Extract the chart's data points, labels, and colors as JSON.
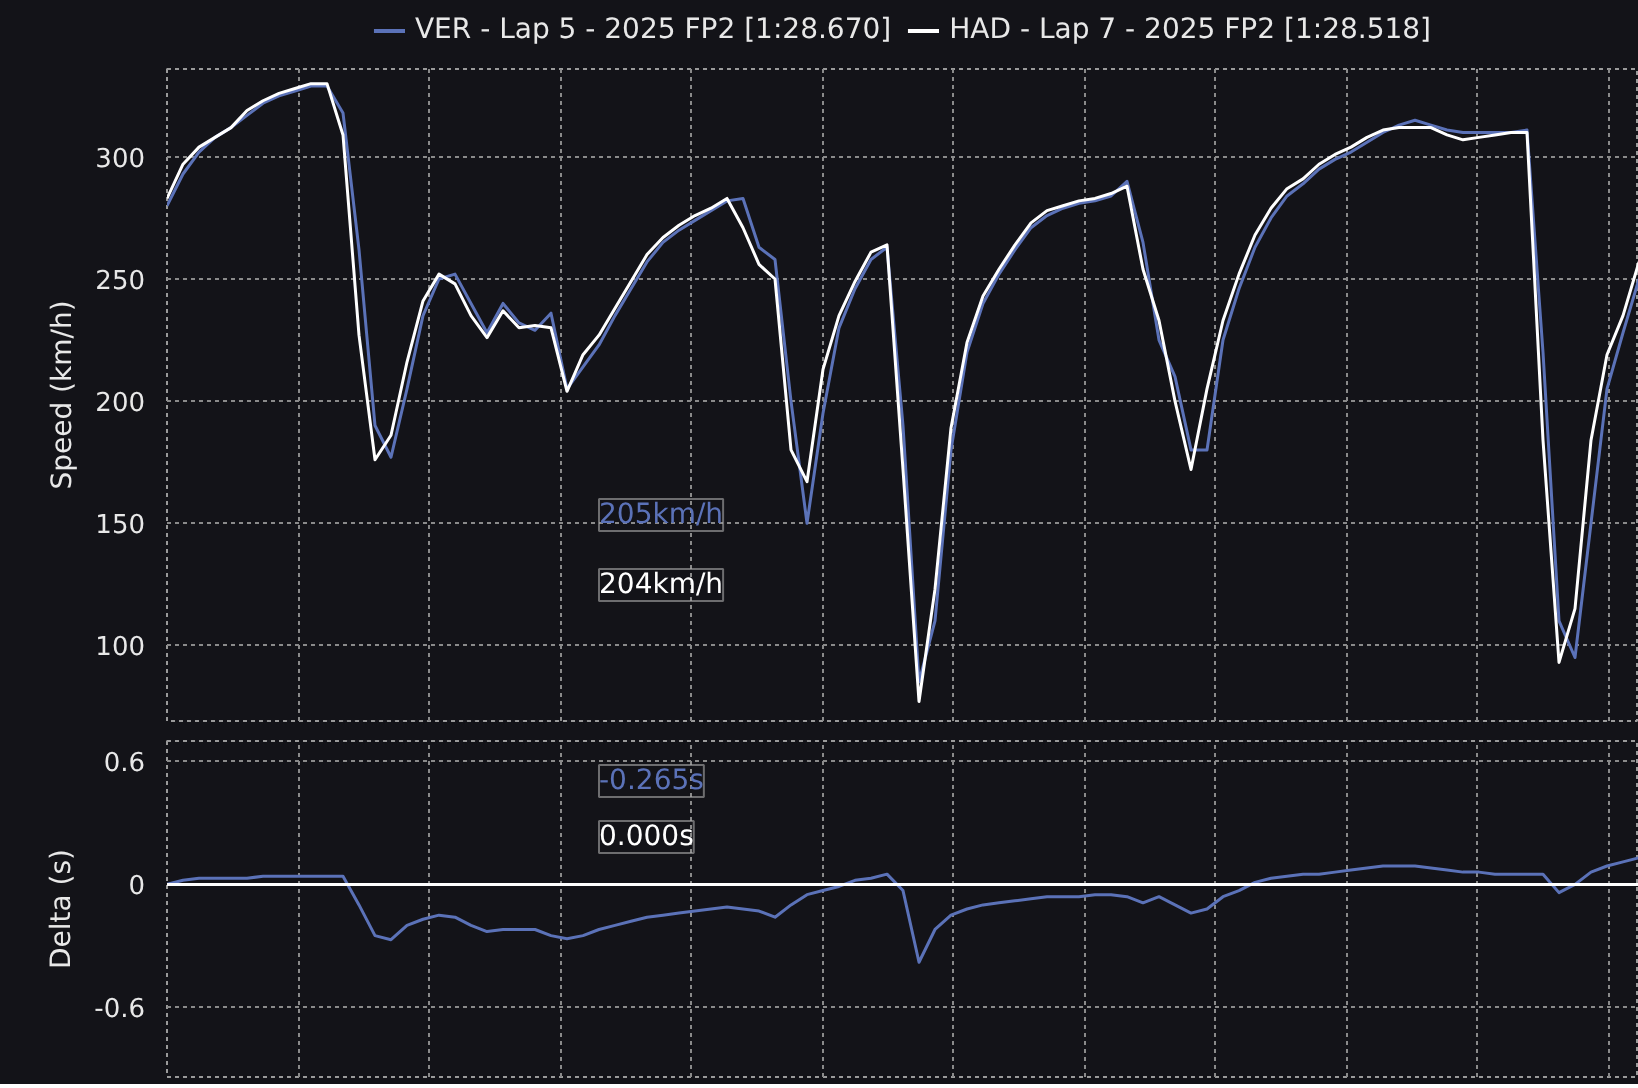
{
  "chart_data": [
    {
      "type": "line",
      "ylabel": "Speed (km/h)",
      "categories": [
        null,
        null,
        null,
        null,
        null,
        null,
        null,
        null,
        null,
        null,
        null,
        null,
        null,
        null,
        null,
        null,
        null,
        null,
        null,
        null,
        null,
        null,
        null,
        null,
        null,
        null,
        null,
        null,
        null,
        null,
        null,
        null,
        null,
        null,
        null,
        null,
        null,
        null,
        null,
        null,
        null,
        null,
        null,
        null,
        null,
        null,
        null,
        null,
        null,
        null,
        null,
        null,
        null,
        null,
        null,
        null,
        null,
        null,
        null,
        null,
        null,
        null,
        null,
        null,
        null,
        null,
        null,
        null,
        null,
        null,
        null,
        null,
        null,
        null,
        null,
        null,
        null,
        null,
        null,
        null,
        null,
        null,
        null,
        null,
        null,
        null,
        null,
        null,
        null,
        null,
        null,
        null,
        null
      ],
      "series": [
        {
          "name": "VER - Lap 5 - 2025 FP2 [1:28.670]",
          "color": "#5b72b8",
          "values": [
            280,
            293,
            302,
            308,
            312,
            317,
            322,
            325,
            327,
            329,
            329,
            318,
            262,
            190,
            177,
            205,
            235,
            250,
            252,
            240,
            228,
            240,
            232,
            229,
            236,
            205,
            214,
            223,
            235,
            246,
            257,
            265,
            270,
            274,
            278,
            282,
            283,
            263,
            258,
            200,
            150,
            195,
            230,
            246,
            258,
            263,
            190,
            85,
            110,
            180,
            220,
            240,
            252,
            262,
            271,
            276,
            279,
            281,
            282,
            284,
            290,
            265,
            225,
            210,
            180,
            180,
            225,
            246,
            263,
            275,
            284,
            289,
            295,
            299,
            302,
            306,
            310,
            313,
            315,
            313,
            311,
            310,
            310,
            310,
            310,
            311,
            220,
            110,
            95,
            150,
            205,
            228,
            250
          ]
        },
        {
          "name": "HAD - Lap 7 - 2025 FP2 [1:28.518]",
          "color": "#ffffff",
          "values": [
            283,
            297,
            304,
            308,
            312,
            319,
            323,
            326,
            328,
            330,
            330,
            309,
            227,
            176,
            186,
            216,
            241,
            252,
            248,
            235,
            226,
            237,
            230,
            231,
            230,
            204,
            219,
            227,
            238,
            249,
            260,
            267,
            272,
            276,
            279,
            283,
            271,
            256,
            250,
            180,
            167,
            213,
            235,
            249,
            261,
            264,
            172,
            77,
            123,
            189,
            224,
            243,
            254,
            264,
            273,
            278,
            280,
            282,
            283,
            285,
            288,
            254,
            233,
            200,
            172,
            205,
            233,
            252,
            268,
            279,
            287,
            291,
            297,
            301,
            304,
            308,
            311,
            312,
            312,
            312,
            309,
            307,
            308,
            309,
            310,
            310,
            184,
            93,
            115,
            184,
            219,
            235,
            257
          ]
        }
      ],
      "ylim": [
        69,
        336
      ],
      "yticks": [
        100,
        150,
        200,
        250,
        300
      ],
      "grid": true,
      "legend": "top",
      "marker": "none",
      "line_style": "solid",
      "annotations": [
        "205km/h",
        "204km/h"
      ]
    },
    {
      "type": "line",
      "ylabel": "Delta (s)",
      "categories": [
        null,
        null,
        null,
        null,
        null,
        null,
        null,
        null,
        null,
        null,
        null,
        null,
        null,
        null,
        null,
        null,
        null,
        null,
        null,
        null,
        null,
        null,
        null,
        null,
        null,
        null,
        null,
        null,
        null,
        null,
        null,
        null,
        null,
        null,
        null,
        null,
        null,
        null,
        null,
        null,
        null,
        null,
        null,
        null,
        null,
        null,
        null,
        null,
        null,
        null,
        null,
        null,
        null,
        null,
        null,
        null,
        null,
        null,
        null,
        null,
        null,
        null,
        null,
        null,
        null,
        null,
        null,
        null,
        null,
        null,
        null,
        null,
        null,
        null,
        null,
        null,
        null,
        null,
        null,
        null,
        null,
        null,
        null,
        null,
        null,
        null,
        null,
        null,
        null,
        null,
        null,
        null,
        null
      ],
      "series": [
        {
          "color": "#5b72b8",
          "values": [
            0,
            0.02,
            0.03,
            0.03,
            0.03,
            0.03,
            0.04,
            0.04,
            0.04,
            0.04,
            0.04,
            0.04,
            -0.1,
            -0.25,
            -0.27,
            -0.2,
            -0.17,
            -0.15,
            -0.16,
            -0.2,
            -0.23,
            -0.22,
            -0.22,
            -0.22,
            -0.25,
            -0.265,
            -0.25,
            -0.22,
            -0.2,
            -0.18,
            -0.16,
            -0.15,
            -0.14,
            -0.13,
            -0.12,
            -0.11,
            -0.12,
            -0.13,
            -0.16,
            -0.1,
            -0.05,
            -0.03,
            -0.01,
            0.02,
            0.03,
            0.05,
            -0.03,
            -0.38,
            -0.22,
            -0.15,
            -0.12,
            -0.1,
            -0.09,
            -0.08,
            -0.07,
            -0.06,
            -0.06,
            -0.06,
            -0.05,
            -0.05,
            -0.06,
            -0.09,
            -0.06,
            -0.1,
            -0.14,
            -0.12,
            -0.06,
            -0.03,
            0.01,
            0.03,
            0.04,
            0.05,
            0.05,
            0.06,
            0.07,
            0.08,
            0.09,
            0.09,
            0.09,
            0.08,
            0.07,
            0.06,
            0.06,
            0.05,
            0.05,
            0.05,
            0.05,
            -0.04,
            0,
            0.06,
            0.09,
            0.11,
            0.13
          ]
        },
        {
          "color": "#ffffff",
          "values": [
            0,
            0,
            0,
            0,
            0,
            0,
            0,
            0,
            0,
            0,
            0,
            0,
            0,
            0,
            0,
            0,
            0,
            0,
            0,
            0,
            0,
            0,
            0,
            0,
            0,
            0,
            0,
            0,
            0,
            0,
            0,
            0,
            0,
            0,
            0,
            0,
            0,
            0,
            0,
            0,
            0,
            0,
            0,
            0,
            0,
            0,
            0,
            0,
            0,
            0,
            0,
            0,
            0,
            0,
            0,
            0,
            0,
            0,
            0,
            0,
            0,
            0,
            0,
            0,
            0,
            0,
            0,
            0,
            0,
            0,
            0,
            0,
            0,
            0,
            0,
            0,
            0,
            0,
            0,
            0,
            0,
            0,
            0,
            0,
            0,
            0,
            0,
            0,
            0,
            0,
            0,
            0,
            0
          ]
        }
      ],
      "ylim": [
        -0.94,
        0.7
      ],
      "yticks": [
        -0.6,
        0,
        0.6
      ],
      "grid": true,
      "marker": "none",
      "line_style": "solid",
      "annotations": [
        "-0.265s",
        "0.000s"
      ]
    }
  ]
}
